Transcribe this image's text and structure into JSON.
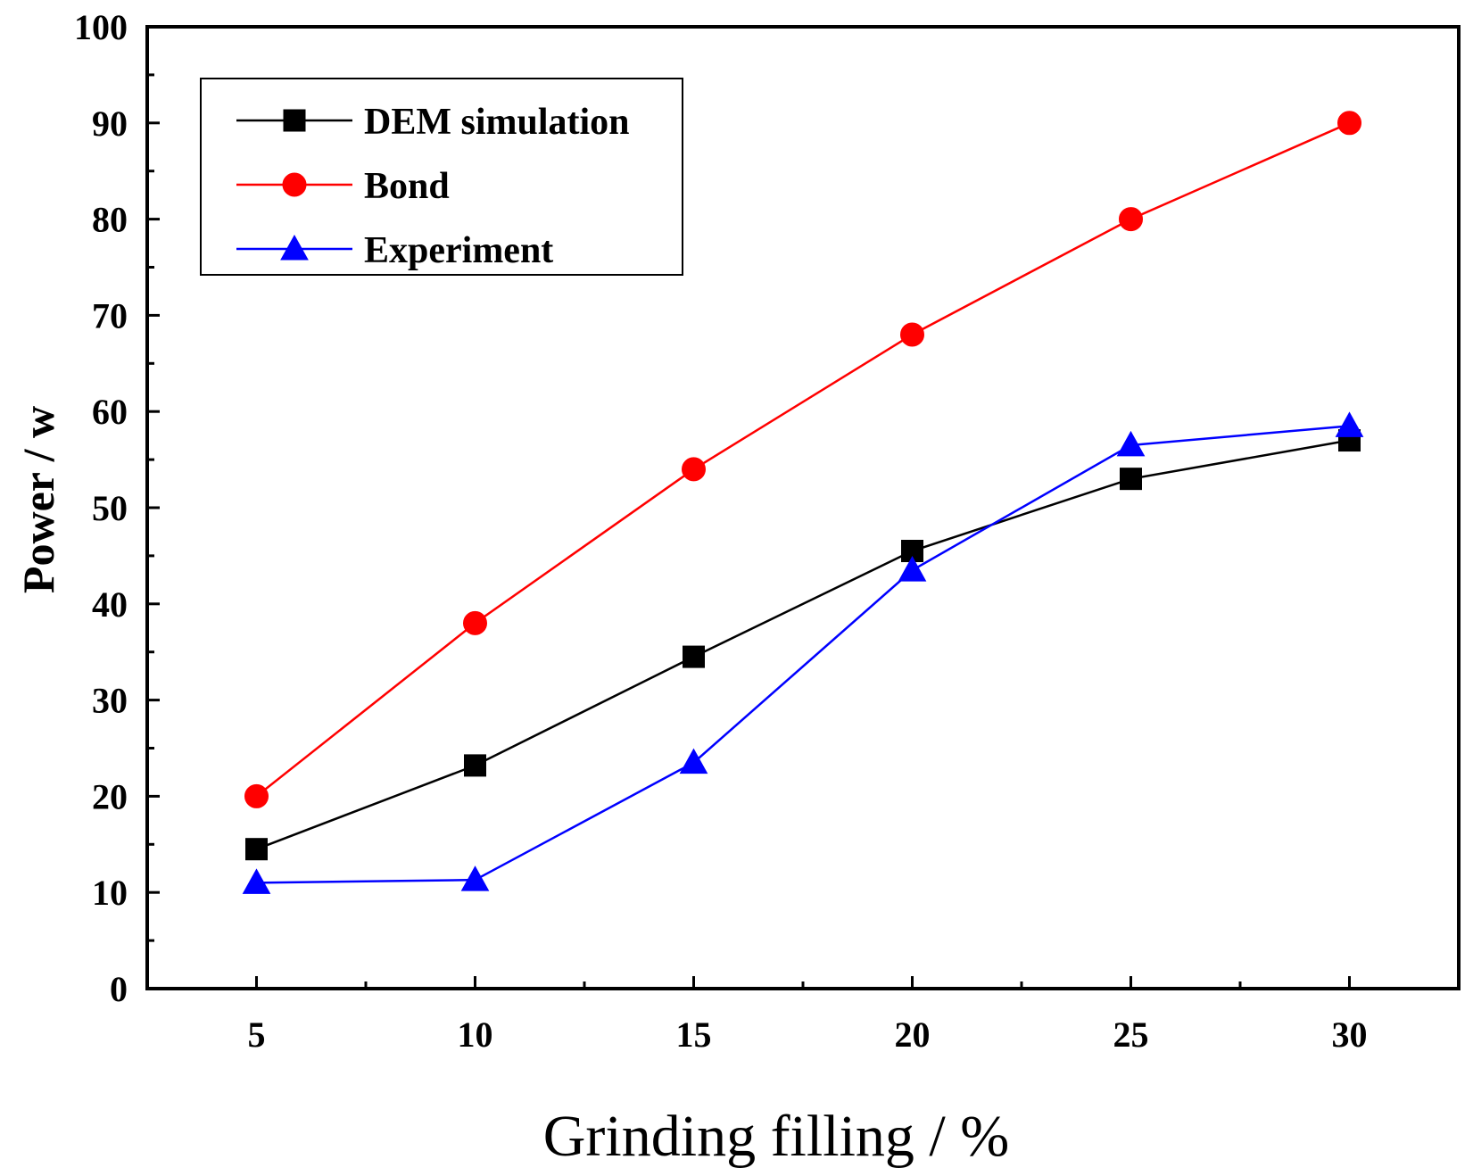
{
  "chart_data": {
    "type": "line",
    "xlabel": "Grinding filling / %",
    "ylabel": "Power / w",
    "x": [
      5,
      10,
      15,
      20,
      25,
      30
    ],
    "xticks": [
      5,
      10,
      15,
      20,
      25,
      30
    ],
    "xlim": [
      2.5,
      32.5
    ],
    "ylim": [
      0,
      100
    ],
    "yticks": [
      0,
      10,
      20,
      30,
      40,
      50,
      60,
      70,
      80,
      90,
      100
    ],
    "grid": false,
    "legend_position": "top-left",
    "series": [
      {
        "name": "DEM simulation",
        "color": "#000000",
        "marker": "square",
        "values": [
          14.5,
          23.2,
          34.5,
          45.5,
          53.0,
          57.0
        ]
      },
      {
        "name": "Bond",
        "color": "#ff0000",
        "marker": "circle",
        "values": [
          20.0,
          38.0,
          54.0,
          68.0,
          80.0,
          90.0
        ]
      },
      {
        "name": "Experiment",
        "color": "#0000ff",
        "marker": "triangle",
        "values": [
          11.0,
          11.3,
          23.5,
          43.5,
          56.5,
          58.5
        ]
      }
    ]
  }
}
